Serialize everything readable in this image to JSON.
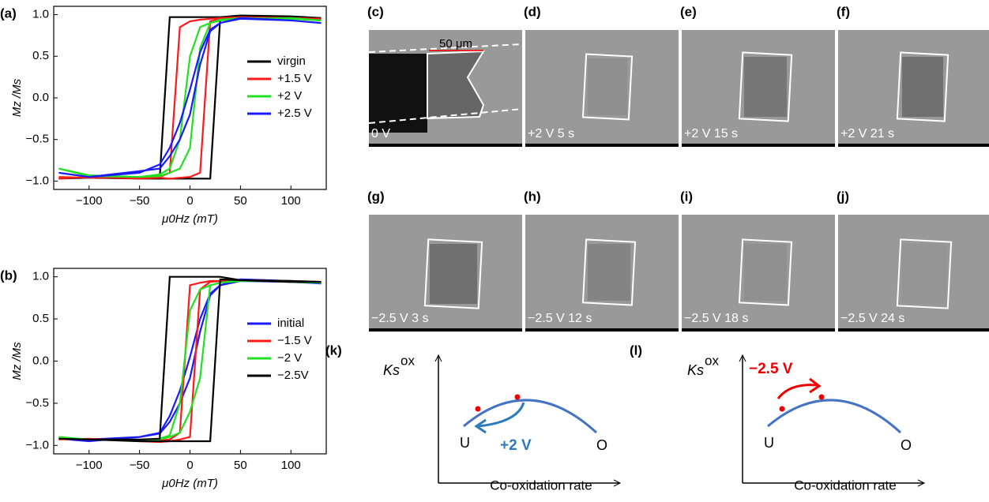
{
  "chart_data": [
    {
      "type": "line",
      "panel_label": "(a)",
      "x_label": "μ0Hz (mT)",
      "y_label": "Mz /Ms",
      "x": [
        -130,
        -100,
        -50,
        -30,
        -20,
        -10,
        0,
        10,
        20,
        30,
        50,
        100,
        130,
        130,
        100,
        50,
        30,
        20,
        10,
        0,
        -10,
        -20,
        -30,
        -50,
        -100,
        -130
      ],
      "xlim": [
        -135,
        135
      ],
      "ylim": [
        -1.1,
        1.1
      ],
      "xticks": [
        {
          "value": -100,
          "label": "−100"
        },
        {
          "value": -50,
          "label": "−50"
        },
        0,
        50,
        100
      ],
      "yticks": [
        {
          "value": -1,
          "label": "−1.0"
        },
        {
          "value": -0.5,
          "label": "−0.5"
        },
        {
          "value": 0,
          "label": "0.0"
        },
        {
          "value": 0.5,
          "label": "0.5"
        },
        {
          "value": 1,
          "label": "1.0"
        }
      ],
      "series": [
        {
          "name": "virgin",
          "color": "#000000",
          "values": [
            -0.97,
            -0.96,
            -0.97,
            -0.97,
            -0.97,
            -0.97,
            -0.97,
            -0.97,
            -0.97,
            0.96,
            0.98,
            0.97,
            0.96,
            0.96,
            0.98,
            0.99,
            0.97,
            0.97,
            0.97,
            0.97,
            0.97,
            0.97,
            -0.96,
            -0.97,
            -0.96,
            -0.97
          ]
        },
        {
          "name": "+1.5 V",
          "color": "#ff1a1a",
          "values": [
            -0.97,
            -0.95,
            -0.97,
            -0.96,
            -0.97,
            -0.96,
            -0.95,
            -0.9,
            0.92,
            0.95,
            0.97,
            0.96,
            0.95,
            0.95,
            0.96,
            0.97,
            0.96,
            0.95,
            0.94,
            0.92,
            0.85,
            -0.9,
            -0.95,
            -0.96,
            -0.96,
            -0.95
          ]
        },
        {
          "name": "+2 V",
          "color": "#22e022",
          "values": [
            -0.85,
            -0.93,
            -0.95,
            -0.94,
            -0.9,
            -0.85,
            -0.6,
            0.6,
            0.9,
            0.94,
            0.96,
            0.95,
            0.93,
            0.93,
            0.96,
            0.95,
            0.93,
            0.9,
            0.85,
            0.5,
            -0.5,
            -0.85,
            -0.92,
            -0.95,
            -0.94,
            -0.85
          ]
        },
        {
          "name": "+2.5 V",
          "color": "#1a1aff",
          "values": [
            -0.9,
            -0.95,
            -0.88,
            -0.85,
            -0.7,
            -0.5,
            -0.2,
            0.4,
            0.8,
            0.9,
            0.95,
            0.93,
            0.9,
            0.9,
            0.93,
            0.96,
            0.9,
            0.82,
            0.55,
            0.1,
            -0.3,
            -0.6,
            -0.8,
            -0.9,
            -0.95,
            -0.9
          ]
        }
      ]
    },
    {
      "type": "line",
      "panel_label": "(b)",
      "x_label": "μ0Hz (mT)",
      "y_label": "Mz /Ms",
      "x": [
        -130,
        -100,
        -50,
        -30,
        -20,
        -10,
        0,
        10,
        20,
        30,
        50,
        100,
        130,
        130,
        100,
        50,
        30,
        20,
        10,
        0,
        -10,
        -20,
        -30,
        -50,
        -100,
        -130
      ],
      "xlim": [
        -135,
        135
      ],
      "ylim": [
        -1.1,
        1.1
      ],
      "xticks": [
        {
          "value": -100,
          "label": "−100"
        },
        {
          "value": -50,
          "label": "−50"
        },
        0,
        50,
        100
      ],
      "yticks": [
        {
          "value": -1,
          "label": "−1.0"
        },
        {
          "value": -0.5,
          "label": "−0.5"
        },
        {
          "value": 0,
          "label": "0.0"
        },
        {
          "value": 0.5,
          "label": "0.5"
        },
        {
          "value": 1,
          "label": "1.0"
        }
      ],
      "series": [
        {
          "name": "initial",
          "color": "#1a1aff",
          "values": [
            -0.92,
            -0.95,
            -0.9,
            -0.86,
            -0.72,
            -0.5,
            -0.2,
            0.35,
            0.78,
            0.9,
            0.95,
            0.94,
            0.92,
            0.92,
            0.95,
            0.97,
            0.9,
            0.8,
            0.5,
            0.05,
            -0.35,
            -0.65,
            -0.85,
            -0.9,
            -0.93,
            -0.92
          ]
        },
        {
          "name": "−1.5 V",
          "color": "#ff1a1a",
          "values": [
            -0.93,
            -0.92,
            -0.95,
            -0.96,
            -0.95,
            -0.93,
            -0.9,
            0.85,
            0.94,
            0.95,
            0.96,
            0.94,
            0.94,
            0.94,
            0.95,
            0.96,
            0.95,
            0.95,
            0.93,
            0.9,
            -0.85,
            -0.93,
            -0.94,
            -0.95,
            -0.92,
            -0.93
          ]
        },
        {
          "name": "−2 V",
          "color": "#22e022",
          "values": [
            -0.9,
            -0.93,
            -0.94,
            -0.93,
            -0.9,
            -0.85,
            -0.6,
            -0.2,
            0.9,
            0.93,
            0.96,
            0.94,
            0.93,
            0.93,
            0.95,
            0.95,
            0.93,
            0.9,
            0.85,
            0.6,
            -0.5,
            -0.88,
            -0.92,
            -0.94,
            -0.93,
            -0.9
          ]
        },
        {
          "name": "−2.5V",
          "color": "#000000",
          "values": [
            -0.92,
            -0.93,
            -0.95,
            -0.95,
            -0.95,
            -0.95,
            -0.95,
            -0.95,
            -0.95,
            0.97,
            0.96,
            0.94,
            0.94,
            0.94,
            0.95,
            0.96,
            1,
            1,
            1,
            1,
            1,
            1,
            -0.92,
            -0.93,
            -0.93,
            -0.92
          ]
        }
      ]
    }
  ],
  "scale_bar": "50 μm",
  "images": [
    {
      "label": "(c)",
      "caption": "0 V"
    },
    {
      "label": "(d)",
      "caption": "+2 V 5 s"
    },
    {
      "label": "(e)",
      "caption": "+2 V 15 s"
    },
    {
      "label": "(f)",
      "caption": "+2 V 21 s"
    },
    {
      "label": "(g)",
      "caption": "−2.5 V 3 s"
    },
    {
      "label": "(h)",
      "caption": "−2.5 V 12 s"
    },
    {
      "label": "(i)",
      "caption": "−2.5 V 18 s"
    },
    {
      "label": "(j)",
      "caption": "−2.5 V 24 s"
    }
  ],
  "schematics": [
    {
      "label": "(k)",
      "y_label": "Ks",
      "y_label_sup": "ox",
      "left": "U",
      "right": "O",
      "voltage": "+2 V",
      "x_label": "Co-oxidation rate"
    },
    {
      "label": "(l)",
      "y_label": "Ks",
      "y_label_sup": "ox",
      "left": "U",
      "right": "O",
      "voltage": "−2.5 V",
      "x_label": "Co-oxidation rate"
    }
  ]
}
